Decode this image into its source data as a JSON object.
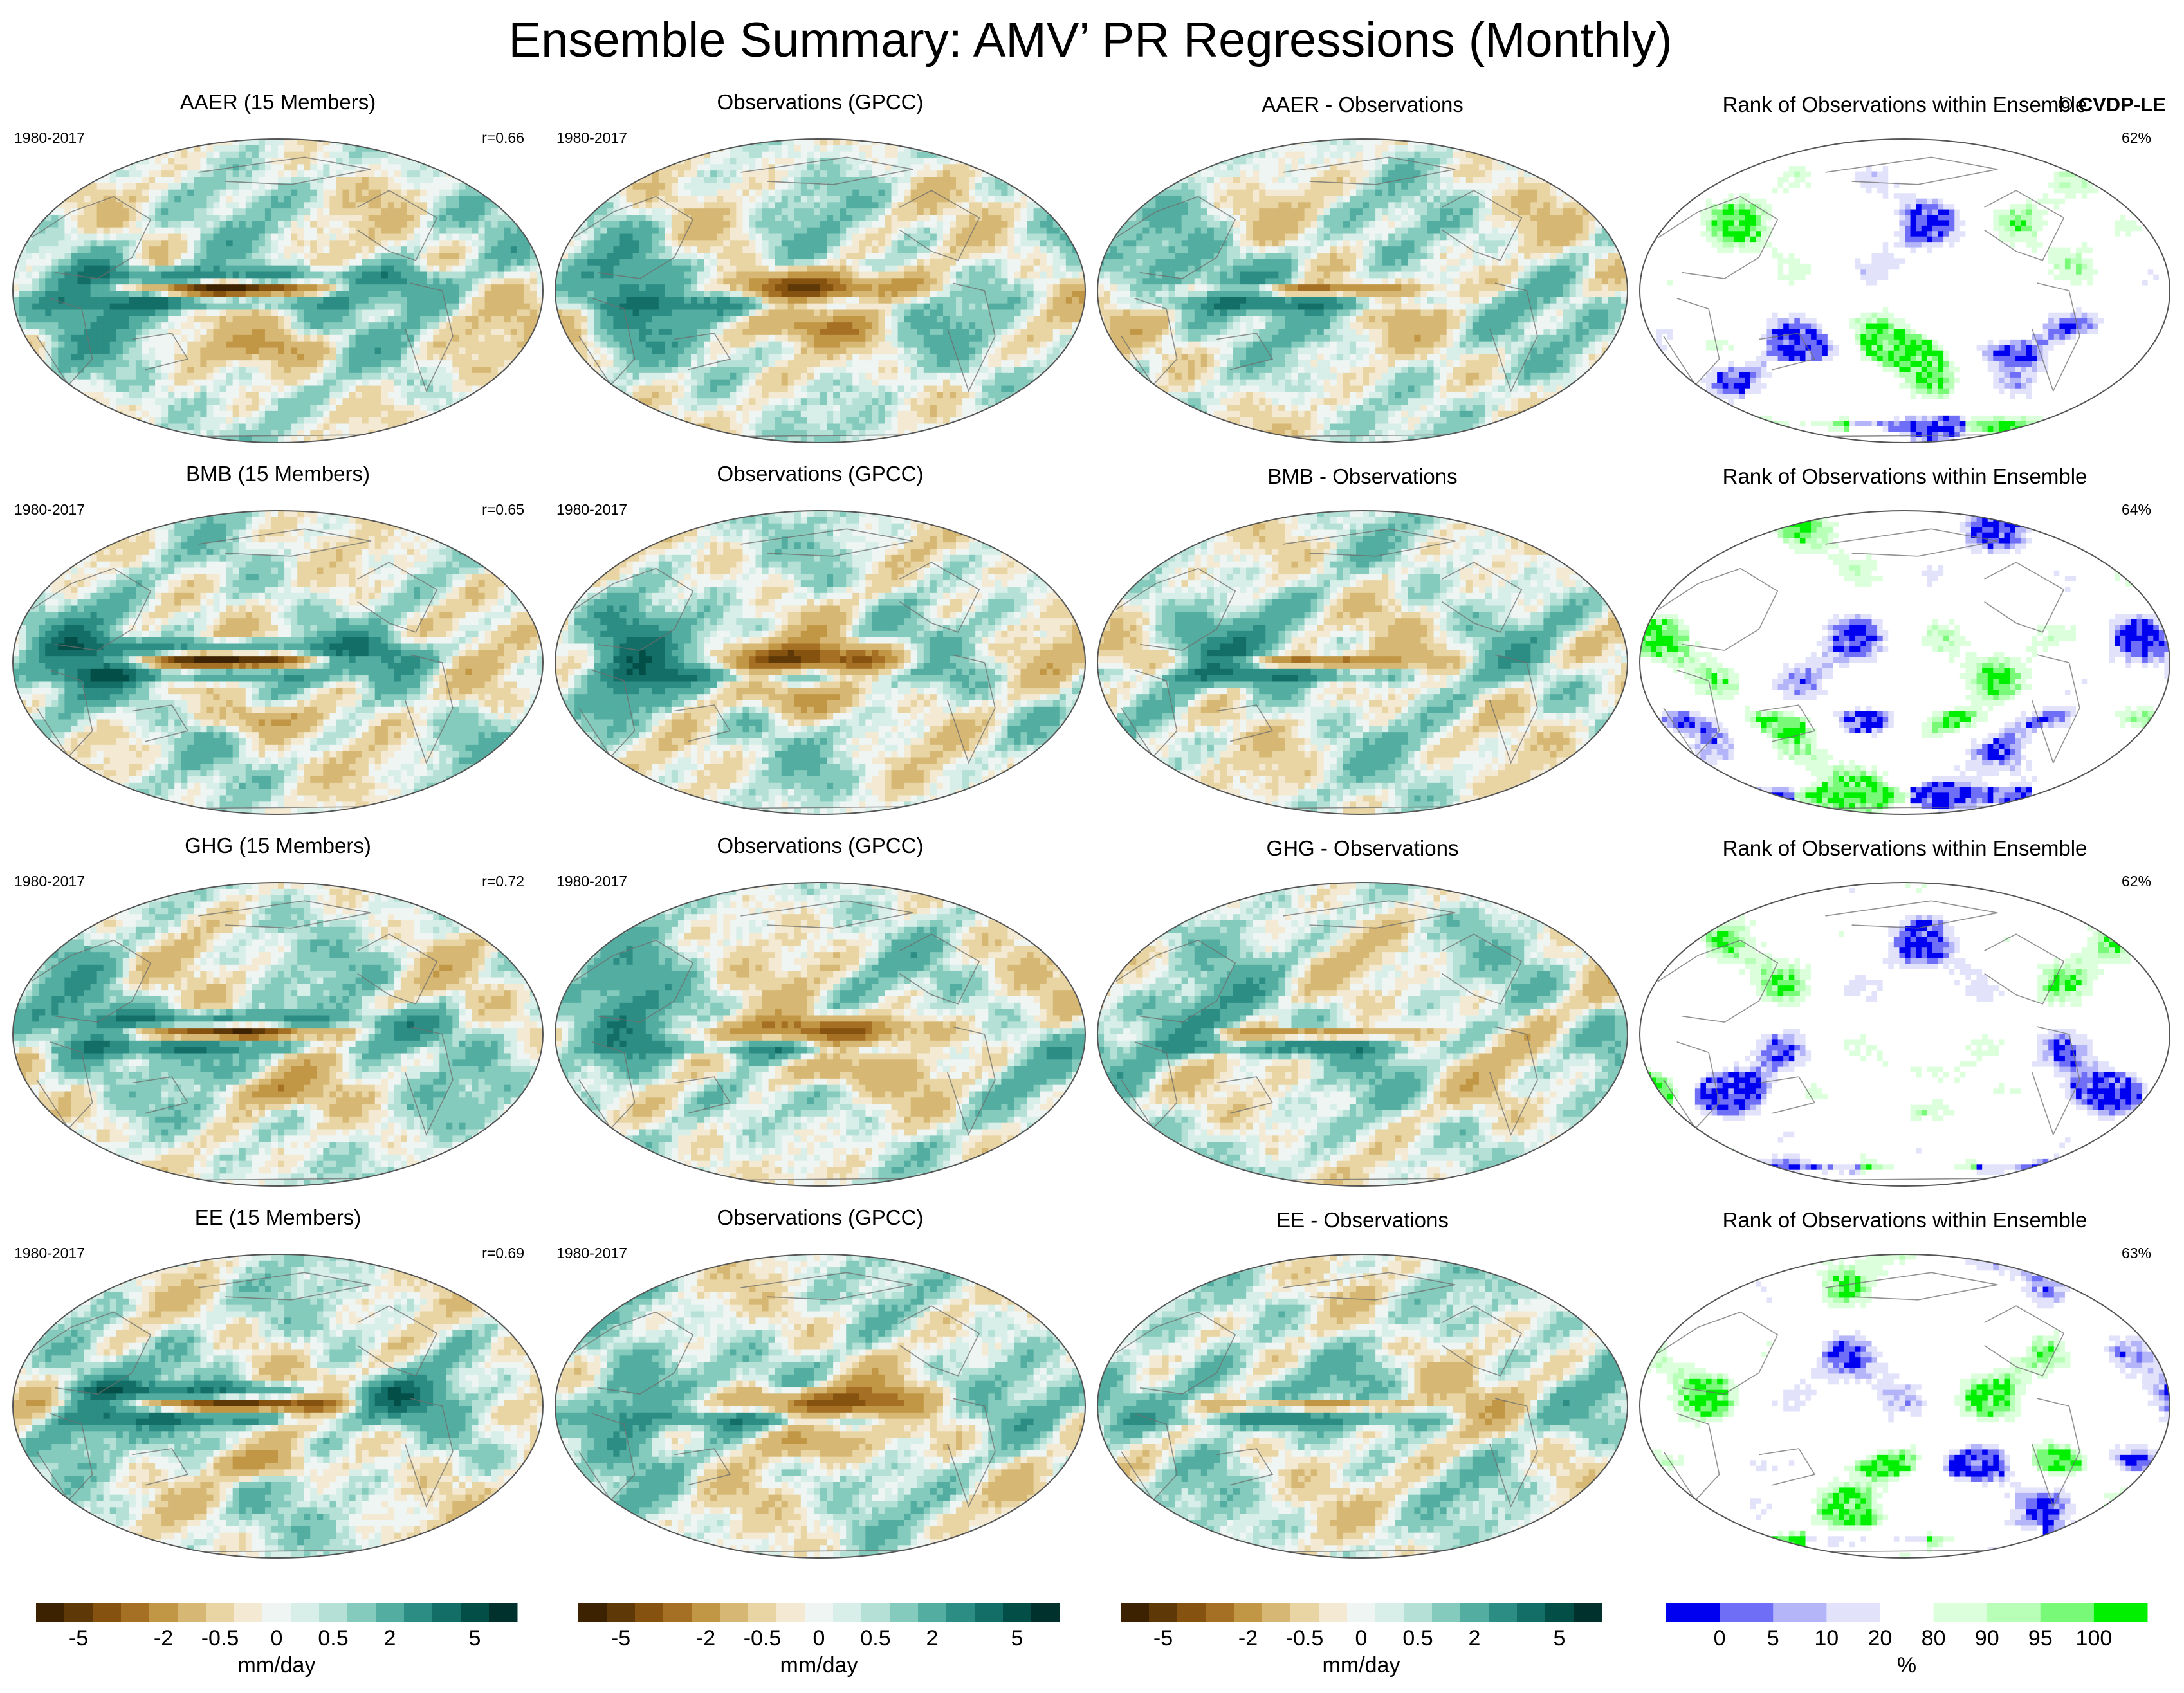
{
  "figure": {
    "title": "Ensemble Summary: AMV’ PR Regressions (Monthly)",
    "watermark": "© CVDP-LE"
  },
  "chart_data": {
    "type": "heatmap",
    "projection": "robinson-style global maps",
    "rows": [
      {
        "ensemble": {
          "title": "AAER (15 Members)",
          "period": "1980-2017",
          "correlation": "r=0.66"
        },
        "observations": {
          "title": "Observations (GPCC)",
          "period": "1980-2017"
        },
        "difference": {
          "title": "AAER - Observations"
        },
        "rank": {
          "title": "Rank of Observations within Ensemble",
          "percent": "62%"
        }
      },
      {
        "ensemble": {
          "title": "BMB (15 Members)",
          "period": "1980-2017",
          "correlation": "r=0.65"
        },
        "observations": {
          "title": "Observations (GPCC)",
          "period": "1980-2017"
        },
        "difference": {
          "title": "BMB - Observations"
        },
        "rank": {
          "title": "Rank of Observations within Ensemble",
          "percent": "64%"
        }
      },
      {
        "ensemble": {
          "title": "GHG (15 Members)",
          "period": "1980-2017",
          "correlation": "r=0.72"
        },
        "observations": {
          "title": "Observations (GPCC)",
          "period": "1980-2017"
        },
        "difference": {
          "title": "GHG - Observations"
        },
        "rank": {
          "title": "Rank of Observations within Ensemble",
          "percent": "62%"
        }
      },
      {
        "ensemble": {
          "title": "EE (15 Members)",
          "period": "1980-2017",
          "correlation": "r=0.69"
        },
        "observations": {
          "title": "Observations (GPCC)",
          "period": "1980-2017"
        },
        "difference": {
          "title": "EE - Observations"
        },
        "rank": {
          "title": "Rank of Observations within Ensemble",
          "percent": "63%"
        }
      }
    ],
    "pr_colorbar": {
      "units": "mm/day",
      "levels": [
        -6,
        -5,
        -4,
        -3,
        -2,
        -1,
        -0.5,
        -0.25,
        0,
        0.25,
        0.5,
        1,
        2,
        3,
        4,
        5,
        6
      ],
      "tick_labels": [
        "-5",
        "-2",
        "-0.5",
        "0",
        "0.5",
        "2",
        "5"
      ],
      "tick_values": [
        -5,
        -2,
        -0.5,
        0,
        0.5,
        2,
        5
      ],
      "colors": [
        "#3d2202",
        "#5e3807",
        "#86520f",
        "#a56f24",
        "#c19645",
        "#d6b773",
        "#e8d5a3",
        "#f4ead3",
        "#eef5f3",
        "#d8eee9",
        "#b4e0d6",
        "#85cbbd",
        "#53ada1",
        "#2c8d84",
        "#126e66",
        "#044e48",
        "#01312c"
      ]
    },
    "rank_colorbar": {
      "units": "%",
      "levels": [
        0,
        5,
        10,
        20,
        80,
        90,
        95,
        100
      ],
      "tick_labels": [
        "0",
        "5",
        "10",
        "20",
        "80",
        "90",
        "95",
        "100"
      ],
      "colors": [
        "#0000f0",
        "#6e6ef6",
        "#b4b4f8",
        "#e2e2fb",
        "#ffffff",
        "#dcffdc",
        "#b8ffb8",
        "#78fa78",
        "#00f000"
      ]
    }
  }
}
